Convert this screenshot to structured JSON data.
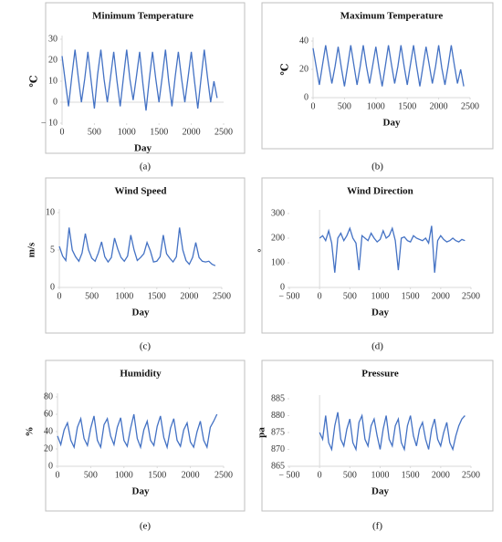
{
  "chart_data": [
    {
      "type": "line",
      "label": "(a)",
      "title": "Minimum Temperature",
      "x_label": "Day",
      "y_label": "℃",
      "x": [
        0,
        50,
        100,
        150,
        200,
        250,
        300,
        350,
        400,
        450,
        500,
        550,
        600,
        650,
        700,
        750,
        800,
        850,
        900,
        950,
        1000,
        1050,
        1100,
        1150,
        1200,
        1250,
        1300,
        1350,
        1400,
        1450,
        1500,
        1550,
        1600,
        1650,
        1700,
        1750,
        1800,
        1850,
        1900,
        1950,
        2000,
        2050,
        2100,
        2150,
        2200,
        2250,
        2300,
        2350,
        2400
      ],
      "series": [
        {
          "color": "#4472c4",
          "values": [
            22,
            10,
            -2,
            12,
            25,
            12,
            0,
            11,
            24,
            10,
            -3,
            13,
            25,
            11,
            0,
            12,
            24,
            10,
            -2,
            12,
            25,
            11,
            1,
            12,
            24,
            9,
            -4,
            11,
            24,
            11,
            0,
            12,
            25,
            10,
            -2,
            12,
            24,
            11,
            0,
            12,
            24,
            10,
            -3,
            11,
            25,
            12,
            0,
            10,
            2
          ]
        }
      ],
      "xlim": [
        0,
        2500
      ],
      "xticks": [
        0,
        500,
        1000,
        1500,
        2000,
        2500
      ],
      "ylim": [
        -10,
        30
      ],
      "yticks": [
        {
          "value": -10,
          "label": "− 10"
        },
        0,
        10,
        20,
        30
      ]
    },
    {
      "type": "line",
      "label": "(b)",
      "title": "Maximum Temperature",
      "x_label": "Day",
      "y_label": "℃",
      "x": [
        0,
        50,
        100,
        150,
        200,
        250,
        300,
        350,
        400,
        450,
        500,
        550,
        600,
        650,
        700,
        750,
        800,
        850,
        900,
        950,
        1000,
        1050,
        1100,
        1150,
        1200,
        1250,
        1300,
        1350,
        1400,
        1450,
        1500,
        1550,
        1600,
        1650,
        1700,
        1750,
        1800,
        1850,
        1900,
        1950,
        2000,
        2050,
        2100,
        2150,
        2200,
        2250,
        2300,
        2350,
        2400
      ],
      "series": [
        {
          "color": "#4472c4",
          "values": [
            35,
            22,
            9,
            23,
            37,
            23,
            10,
            22,
            36,
            21,
            8,
            22,
            37,
            23,
            9,
            22,
            37,
            22,
            10,
            23,
            36,
            21,
            8,
            22,
            37,
            23,
            10,
            22,
            37,
            22,
            9,
            23,
            37,
            22,
            8,
            22,
            36,
            23,
            10,
            22,
            37,
            21,
            9,
            22,
            37,
            23,
            10,
            20,
            8
          ]
        }
      ],
      "xlim": [
        0,
        2500
      ],
      "xticks": [
        0,
        500,
        1000,
        1500,
        2000,
        2500
      ],
      "ylim": [
        0,
        40
      ],
      "yticks": [
        0,
        20,
        40
      ]
    },
    {
      "type": "line",
      "label": "(c)",
      "title": "Wind Speed",
      "x_label": "Day",
      "y_label": "m/s",
      "x": [
        0,
        50,
        100,
        150,
        200,
        250,
        300,
        350,
        400,
        450,
        500,
        550,
        600,
        650,
        700,
        750,
        800,
        850,
        900,
        950,
        1000,
        1050,
        1100,
        1150,
        1200,
        1250,
        1300,
        1350,
        1400,
        1450,
        1500,
        1550,
        1600,
        1650,
        1700,
        1750,
        1800,
        1850,
        1900,
        1950,
        2000,
        2050,
        2100,
        2150,
        2200,
        2250,
        2300,
        2350,
        2400
      ],
      "series": [
        {
          "color": "#4472c4",
          "values": [
            5.5,
            4.2,
            3.6,
            8,
            5,
            4.1,
            3.5,
            4.6,
            7.2,
            5,
            3.9,
            3.5,
            4.6,
            6.1,
            4.1,
            3.4,
            4,
            6.6,
            5.1,
            4,
            3.5,
            4.2,
            7,
            5,
            3.6,
            4,
            4.5,
            6,
            4.9,
            3.4,
            3.5,
            4.1,
            7,
            4.5,
            3.9,
            3.4,
            4.1,
            8,
            5,
            3.6,
            3.1,
            4,
            6,
            4,
            3.5,
            3.4,
            3.5,
            3.1,
            2.9
          ]
        }
      ],
      "xlim": [
        0,
        2500
      ],
      "xticks": [
        0,
        500,
        1000,
        1500,
        2000,
        2500
      ],
      "ylim": [
        0,
        10
      ],
      "yticks": [
        0,
        5,
        10
      ]
    },
    {
      "type": "line",
      "label": "(d)",
      "title": "Wind Direction",
      "x_label": "Day",
      "y_label": "°",
      "x": [
        0,
        50,
        100,
        150,
        200,
        250,
        300,
        350,
        400,
        450,
        500,
        550,
        600,
        650,
        700,
        750,
        800,
        850,
        900,
        950,
        1000,
        1050,
        1100,
        1150,
        1200,
        1250,
        1300,
        1350,
        1400,
        1450,
        1500,
        1550,
        1600,
        1650,
        1700,
        1750,
        1800,
        1850,
        1900,
        1950,
        2000,
        2050,
        2100,
        2150,
        2200,
        2250,
        2300,
        2350,
        2400
      ],
      "series": [
        {
          "color": "#4472c4",
          "values": [
            200,
            210,
            190,
            230,
            180,
            60,
            200,
            220,
            190,
            210,
            240,
            200,
            180,
            70,
            210,
            200,
            190,
            220,
            200,
            185,
            195,
            230,
            200,
            210,
            240,
            190,
            70,
            200,
            205,
            190,
            185,
            210,
            200,
            195,
            190,
            200,
            180,
            250,
            60,
            190,
            210,
            195,
            185,
            190,
            200,
            190,
            185,
            195,
            190
          ]
        }
      ],
      "xlim": [
        -500,
        2500
      ],
      "xticks": [
        {
          "value": -500,
          "label": "− 500"
        },
        0,
        500,
        1000,
        1500,
        2000,
        2500
      ],
      "ylim": [
        0,
        300
      ],
      "yticks": [
        0,
        100,
        200,
        300
      ]
    },
    {
      "type": "line",
      "label": "(e)",
      "title": "Humidity",
      "x_label": "Day",
      "y_label": "%",
      "x": [
        0,
        50,
        100,
        150,
        200,
        250,
        300,
        350,
        400,
        450,
        500,
        550,
        600,
        650,
        700,
        750,
        800,
        850,
        900,
        950,
        1000,
        1050,
        1100,
        1150,
        1200,
        1250,
        1300,
        1350,
        1400,
        1450,
        1500,
        1550,
        1600,
        1650,
        1700,
        1750,
        1800,
        1850,
        1900,
        1950,
        2000,
        2050,
        2100,
        2150,
        2200,
        2250,
        2300,
        2350,
        2400
      ],
      "series": [
        {
          "color": "#4472c4",
          "values": [
            35,
            25,
            42,
            50,
            30,
            22,
            45,
            55,
            32,
            24,
            44,
            58,
            30,
            22,
            48,
            55,
            35,
            25,
            45,
            56,
            30,
            23,
            44,
            60,
            32,
            22,
            42,
            52,
            30,
            24,
            46,
            58,
            33,
            22,
            44,
            55,
            30,
            23,
            42,
            50,
            28,
            22,
            40,
            52,
            30,
            22,
            45,
            52,
            60
          ]
        }
      ],
      "xlim": [
        0,
        2500
      ],
      "xticks": [
        0,
        500,
        1000,
        1500,
        2000,
        2500
      ],
      "ylim": [
        0,
        80
      ],
      "yticks": [
        0,
        20,
        40,
        60,
        80
      ]
    },
    {
      "type": "line",
      "label": "(f)",
      "title": "Pressure",
      "x_label": "Day",
      "y_label": "pa",
      "x": [
        0,
        50,
        100,
        150,
        200,
        250,
        300,
        350,
        400,
        450,
        500,
        550,
        600,
        650,
        700,
        750,
        800,
        850,
        900,
        950,
        1000,
        1050,
        1100,
        1150,
        1200,
        1250,
        1300,
        1350,
        1400,
        1450,
        1500,
        1550,
        1600,
        1650,
        1700,
        1750,
        1800,
        1850,
        1900,
        1950,
        2000,
        2050,
        2100,
        2150,
        2200,
        2250,
        2300,
        2350,
        2400
      ],
      "series": [
        {
          "color": "#4472c4",
          "values": [
            875,
            873,
            880,
            872,
            870,
            877,
            881,
            873,
            871,
            876,
            879,
            872,
            870,
            878,
            880,
            873,
            871,
            877,
            879,
            874,
            870,
            876,
            880,
            873,
            871,
            877,
            879,
            872,
            870,
            877,
            880,
            874,
            871,
            876,
            878,
            873,
            870,
            876,
            879,
            873,
            871,
            875,
            878,
            872,
            870,
            874,
            877,
            879,
            880
          ]
        }
      ],
      "xlim": [
        -500,
        2500
      ],
      "xticks": [
        {
          "value": -500,
          "label": "− 500"
        },
        0,
        500,
        1000,
        1500,
        2000,
        2500
      ],
      "ylim": [
        865,
        885
      ],
      "yticks": [
        865,
        870,
        875,
        880,
        885
      ]
    }
  ]
}
